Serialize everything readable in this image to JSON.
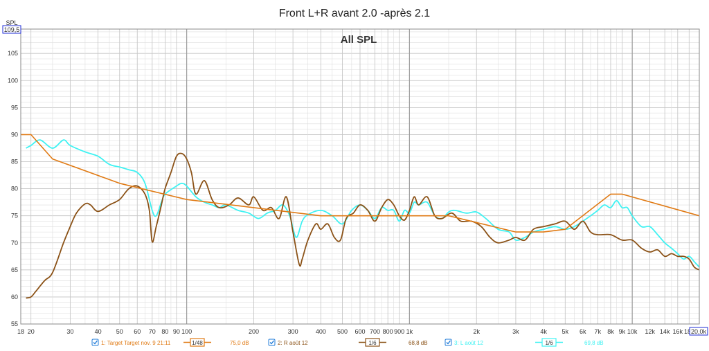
{
  "title": "Front L+R avant 2.0 -après 2.1",
  "subtitle": "All SPL",
  "colors": {
    "target": "#e07a14",
    "r": "#8b5217",
    "l": "#3ff2f2",
    "grid_major": "#9e9e9e",
    "grid_minor": "#dedede",
    "axis_box": "#1c2bd6",
    "checkbox": "#1f7bd8"
  },
  "axes": {
    "y_unit": "SPL",
    "y_max_label": "109,5",
    "x_max_label": "20,0k",
    "xlim": [
      18,
      20000
    ],
    "ylim": [
      55,
      109.5
    ],
    "scale_x": "log",
    "grid": true,
    "y_ticks": [
      {
        "v": 55,
        "label": "55"
      },
      {
        "v": 60,
        "label": "60"
      },
      {
        "v": 65,
        "label": "65"
      },
      {
        "v": 70,
        "label": "70"
      },
      {
        "v": 75,
        "label": "75"
      },
      {
        "v": 80,
        "label": "80"
      },
      {
        "v": 85,
        "label": "85"
      },
      {
        "v": 90,
        "label": "90"
      },
      {
        "v": 95,
        "label": "95"
      },
      {
        "v": 100,
        "label": "100"
      },
      {
        "v": 105,
        "label": "105"
      }
    ],
    "x_ticks": [
      {
        "v": 18,
        "label": "18"
      },
      {
        "v": 20,
        "label": "20"
      },
      {
        "v": 30,
        "label": "30"
      },
      {
        "v": 40,
        "label": "40"
      },
      {
        "v": 50,
        "label": "50"
      },
      {
        "v": 60,
        "label": "60"
      },
      {
        "v": 70,
        "label": "70"
      },
      {
        "v": 80,
        "label": "80"
      },
      {
        "v": 90,
        "label": "90"
      },
      {
        "v": 100,
        "label": "100"
      },
      {
        "v": 200,
        "label": "200"
      },
      {
        "v": 300,
        "label": "300"
      },
      {
        "v": 400,
        "label": "400"
      },
      {
        "v": 500,
        "label": "500"
      },
      {
        "v": 600,
        "label": "600"
      },
      {
        "v": 700,
        "label": "700"
      },
      {
        "v": 800,
        "label": "800"
      },
      {
        "v": 900,
        "label": "900"
      },
      {
        "v": 1000,
        "label": "1k"
      },
      {
        "v": 2000,
        "label": "2k"
      },
      {
        "v": 3000,
        "label": "3k"
      },
      {
        "v": 4000,
        "label": "4k"
      },
      {
        "v": 5000,
        "label": "5k"
      },
      {
        "v": 6000,
        "label": "6k"
      },
      {
        "v": 7000,
        "label": "7k"
      },
      {
        "v": 8000,
        "label": "8k"
      },
      {
        "v": 9000,
        "label": "9k"
      },
      {
        "v": 10000,
        "label": "10k"
      },
      {
        "v": 12000,
        "label": "12k"
      },
      {
        "v": 14000,
        "label": "14k"
      },
      {
        "v": 16000,
        "label": "16k"
      },
      {
        "v": 18000,
        "label": "18k"
      }
    ]
  },
  "legend": [
    {
      "label": "1: Target Target nov. 9 21:11",
      "smoothing": "1/48",
      "level": "75,0 dB",
      "checked": true
    },
    {
      "label": "2: R août 12",
      "smoothing": "1/6",
      "level": "68,8 dB",
      "checked": true
    },
    {
      "label": "3: L août 12",
      "smoothing": "1/6",
      "level": "69,8 dB",
      "checked": true
    }
  ],
  "chart_data": {
    "type": "line",
    "title": "Front L+R avant 2.0 -après 2.1",
    "subtitle": "All SPL",
    "xlabel": "",
    "ylabel": "SPL",
    "xlim": [
      18,
      20000
    ],
    "ylim": [
      55,
      109.5
    ],
    "x_scale": "log",
    "grid": true,
    "legend_position": "bottom",
    "series": [
      {
        "name": "1: Target Target nov. 9 21:11",
        "color": "#e07a14",
        "x": [
          18,
          20,
          25,
          50,
          100,
          200,
          400,
          1000,
          1500,
          3000,
          4000,
          5000,
          8000,
          9000,
          20000
        ],
        "y": [
          90,
          90,
          85.5,
          81,
          78,
          76.5,
          75,
          75,
          75,
          72,
          72,
          72.5,
          79,
          79,
          75
        ]
      },
      {
        "name": "2: R août 12",
        "color": "#8b5217",
        "x": [
          19,
          20,
          21,
          23,
          25,
          28,
          30,
          32,
          35,
          37,
          40,
          45,
          50,
          55,
          60,
          65,
          68,
          70,
          73,
          77,
          80,
          85,
          90,
          95,
          100,
          105,
          110,
          120,
          130,
          140,
          155,
          170,
          190,
          200,
          220,
          240,
          260,
          280,
          300,
          320,
          330,
          350,
          380,
          400,
          430,
          460,
          490,
          520,
          560,
          600,
          650,
          700,
          750,
          800,
          850,
          900,
          950,
          1000,
          1050,
          1100,
          1200,
          1300,
          1400,
          1550,
          1700,
          1900,
          2100,
          2300,
          2500,
          2800,
          3000,
          3300,
          3600,
          4000,
          4500,
          5000,
          5500,
          6000,
          6500,
          7000,
          8000,
          9000,
          10000,
          11000,
          12000,
          13000,
          14000,
          15000,
          16000,
          17000,
          18000,
          19000,
          20000
        ],
        "y": [
          59.8,
          60,
          61,
          63,
          64.5,
          70,
          73,
          75.5,
          77.2,
          77,
          75.8,
          77,
          78,
          80,
          80.5,
          79,
          76,
          70.2,
          73,
          77,
          80,
          83,
          86,
          86.5,
          85.5,
          83,
          79,
          81.5,
          78,
          76.5,
          77,
          78.3,
          77,
          78.5,
          76,
          76.5,
          74.5,
          78.5,
          72,
          66,
          67,
          70.5,
          73.5,
          72.5,
          73.5,
          71,
          70.5,
          74.5,
          75.5,
          77,
          76,
          74,
          76.5,
          78,
          77,
          75,
          74.2,
          76,
          78.5,
          77,
          78.5,
          75,
          74.5,
          75.5,
          74,
          74,
          73,
          71,
          70,
          70.5,
          71,
          70.5,
          72.5,
          73,
          73.5,
          74,
          72.5,
          74,
          72,
          71.5,
          71.5,
          70.5,
          70.5,
          69,
          68.3,
          68.7,
          67.5,
          68,
          67.5,
          67.5,
          67,
          65.5,
          65
        ]
      },
      {
        "name": "3: L août 12",
        "color": "#3ff2f2",
        "x": [
          19,
          20,
          22,
          25,
          28,
          30,
          35,
          40,
          45,
          50,
          55,
          60,
          65,
          70,
          73,
          77,
          80,
          90,
          95,
          100,
          110,
          120,
          130,
          140,
          150,
          170,
          190,
          210,
          230,
          250,
          270,
          290,
          310,
          330,
          350,
          400,
          450,
          500,
          550,
          600,
          650,
          700,
          750,
          800,
          850,
          900,
          950,
          1000,
          1050,
          1100,
          1200,
          1300,
          1400,
          1500,
          1600,
          1800,
          2000,
          2200,
          2500,
          2800,
          3000,
          3300,
          3600,
          4000,
          4500,
          5000,
          5500,
          6000,
          6500,
          7000,
          7500,
          8000,
          8500,
          9000,
          9500,
          10000,
          11000,
          12000,
          13000,
          14000,
          15000,
          16000,
          17000,
          18000,
          19000,
          20000
        ],
        "y": [
          87.5,
          88,
          89,
          87.5,
          89,
          88,
          86.8,
          86,
          84.5,
          84,
          83.5,
          83,
          81,
          76,
          75,
          77.5,
          79,
          80.5,
          81,
          80.5,
          78.5,
          77.5,
          77,
          76.5,
          77,
          76,
          75.5,
          74.5,
          75.5,
          76,
          77,
          75,
          71,
          74,
          75.2,
          76,
          75,
          73.5,
          76,
          77,
          76,
          74.5,
          76.5,
          76,
          76,
          74,
          76,
          75.5,
          77.5,
          77,
          77.5,
          75,
          74.5,
          75.7,
          76,
          75.5,
          75.7,
          74.5,
          72.5,
          72,
          70.5,
          71,
          72,
          72.5,
          73,
          72.5,
          73,
          74,
          75,
          76,
          77,
          76.5,
          77.8,
          76.5,
          76.5,
          75,
          73,
          73,
          71.5,
          70,
          69,
          68,
          67,
          67.5,
          66.5,
          65.5
        ]
      }
    ]
  }
}
